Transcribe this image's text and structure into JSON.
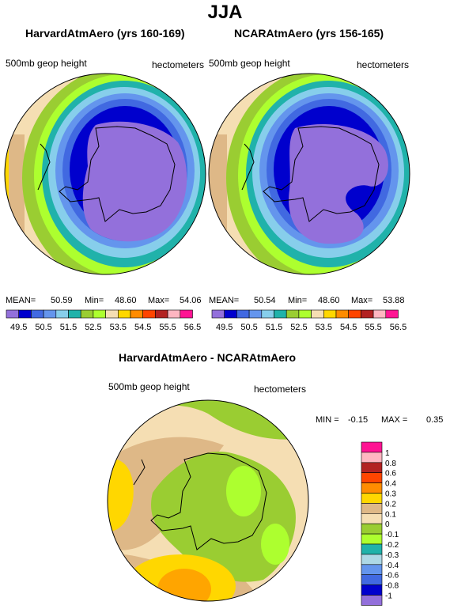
{
  "title": "JJA",
  "panels": [
    {
      "name": "HarvardAtmAero (yrs 160-169)",
      "left_label": "500mb geop height",
      "right_label": "hectometers",
      "stats": {
        "mean_label": "MEAN=",
        "mean": "50.59",
        "min_label": "Min=",
        "min": "48.60",
        "max_label": "Max=",
        "max": "54.06"
      }
    },
    {
      "name": "NCARAtmAero (yrs 156-165)",
      "left_label": "500mb geop height",
      "right_label": "hectometers",
      "stats": {
        "mean_label": "MEAN=",
        "mean": "50.54",
        "min_label": "Min=",
        "min": "48.60",
        "max_label": "Max=",
        "max": "53.88"
      }
    }
  ],
  "colorbar": {
    "colors": [
      "#9370db",
      "#0000cd",
      "#4169e1",
      "#6495ed",
      "#87ceeb",
      "#20b2aa",
      "#9acd32",
      "#adff2f",
      "#f5deb3",
      "#ffd700",
      "#ff8c00",
      "#ff4500",
      "#b22222",
      "#ffb6c1",
      "#ff1493"
    ],
    "tick_labels": [
      "49.5",
      "50.5",
      "51.5",
      "52.5",
      "53.5",
      "54.5",
      "55.5",
      "56.5"
    ]
  },
  "diff": {
    "title": "HarvardAtmAero - NCARAtmAero",
    "left_label": "500mb geop height",
    "right_label": "hectometers",
    "min_label": "MIN =",
    "min": "-0.15",
    "max_label": "MAX =",
    "max": "0.35",
    "legend_colors": [
      "#9370db",
      "#0000cd",
      "#4169e1",
      "#6495ed",
      "#add8e6",
      "#20b2aa",
      "#adff2f",
      "#9acd32",
      "#f5deb3",
      "#deb887",
      "#ffd700",
      "#ff8c00",
      "#ff4500",
      "#b22222",
      "#ffb6c1",
      "#ff1493"
    ],
    "legend_labels": [
      "-1",
      "-0.8",
      "-0.6",
      "-0.4",
      "-0.3",
      "-0.2",
      "-0.1",
      "0",
      "0.1",
      "0.2",
      "0.3",
      "0.4",
      "0.6",
      "0.8",
      "1"
    ]
  }
}
